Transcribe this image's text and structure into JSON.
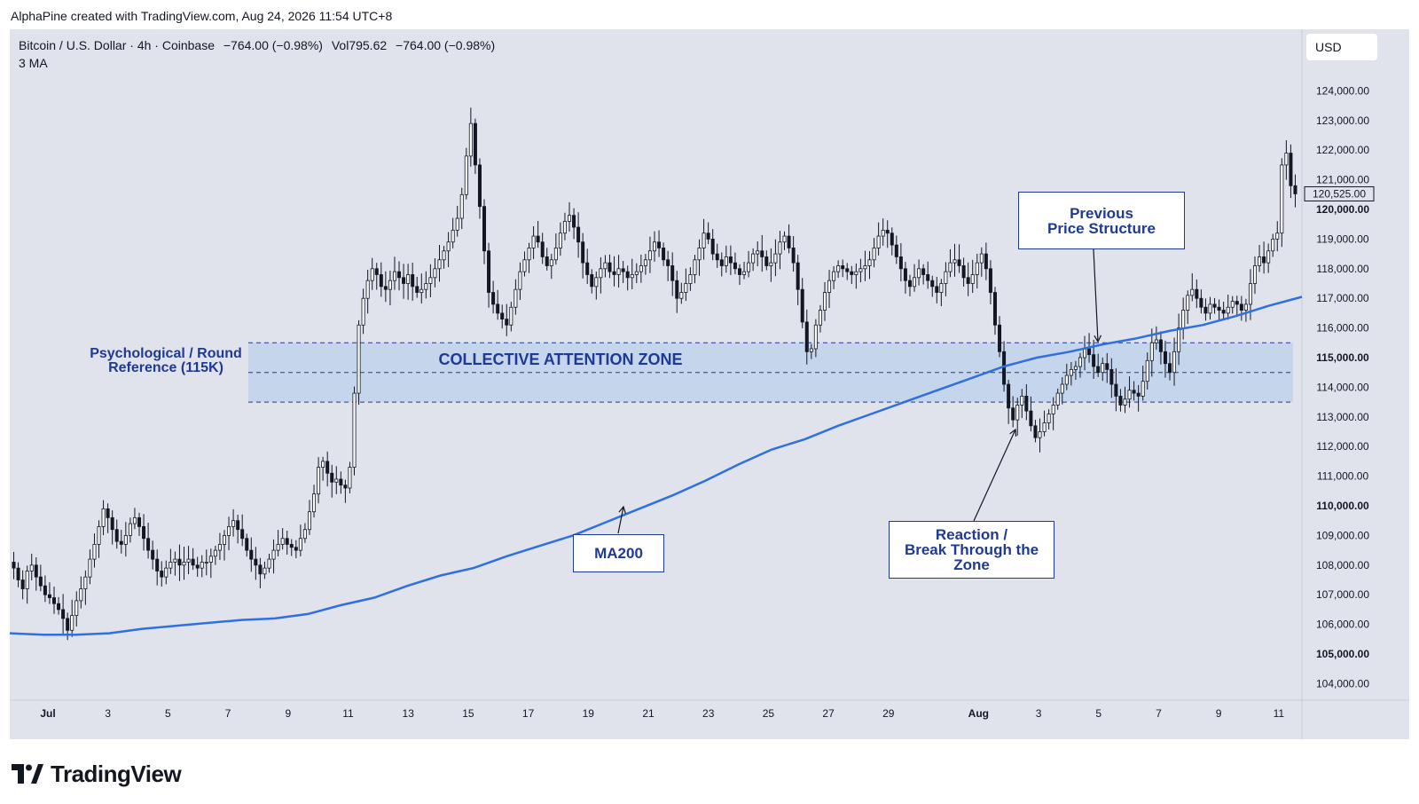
{
  "header": {
    "attribution": "AlphaPine created with TradingView.com, Aug 24, 2026 11:54 UTC+8"
  },
  "legend": {
    "symbol": "Bitcoin / U.S. Dollar · 4h · Coinbase",
    "change": "−764.00 (−0.98%)",
    "volume": "Vol795.62",
    "volume_change": "−764.00 (−0.98%)",
    "indicator": "3 MA"
  },
  "currency": "USD",
  "brand": {
    "name": "TradingView"
  },
  "annotations": {
    "zone_label": "COLLECTIVE ATTENTION ZONE",
    "psych_line1": "Psychological / Round",
    "psych_line2": "Reference (115K)",
    "ma_label": "MA200",
    "prev_line1": "Previous",
    "prev_line2": "Price Structure",
    "reaction_line1": "Reaction /",
    "reaction_line2": "Break Through the",
    "reaction_line3": "Zone"
  },
  "colors": {
    "background": "#e0e3eb",
    "candle": "#131722",
    "candle_up_fill": "#ffffff",
    "ma": "#2f6fe0",
    "zone": "#bcd2ec",
    "accent": "#1f3a93"
  },
  "chart_data": {
    "type": "candlestick",
    "symbol": "Bitcoin / U.S. Dollar",
    "interval": "4h",
    "exchange": "Coinbase",
    "last_price": 120525.0,
    "last_price_label": "120,525.00",
    "ylim": [
      103500,
      125700
    ],
    "y_ticks": [
      104000,
      105000,
      106000,
      107000,
      108000,
      109000,
      110000,
      111000,
      112000,
      113000,
      114000,
      115000,
      116000,
      117000,
      118000,
      119000,
      120000,
      121000,
      122000,
      123000,
      124000
    ],
    "y_tick_labels": [
      "104,000.00",
      "105,000.00",
      "106,000.00",
      "107,000.00",
      "108,000.00",
      "109,000.00",
      "110,000.00",
      "111,000.00",
      "112,000.00",
      "113,000.00",
      "114,000.00",
      "115,000.00",
      "116,000.00",
      "117,000.00",
      "118,000.00",
      "119,000.00",
      "120,000.00",
      "121,000.00",
      "122,000.00",
      "123,000.00",
      "124,000.00"
    ],
    "y_bold_ticks": [
      105000,
      110000,
      115000,
      120000
    ],
    "x_start": "Jul 1",
    "x_end": "Aug 12",
    "x_ticks": [
      {
        "day": 1,
        "label": "Jul"
      },
      {
        "day": 3,
        "label": "3"
      },
      {
        "day": 5,
        "label": "5"
      },
      {
        "day": 7,
        "label": "7"
      },
      {
        "day": 9,
        "label": "9"
      },
      {
        "day": 11,
        "label": "11"
      },
      {
        "day": 13,
        "label": "13"
      },
      {
        "day": 15,
        "label": "15"
      },
      {
        "day": 17,
        "label": "17"
      },
      {
        "day": 19,
        "label": "19"
      },
      {
        "day": 21,
        "label": "21"
      },
      {
        "day": 23,
        "label": "23"
      },
      {
        "day": 25,
        "label": "25"
      },
      {
        "day": 27,
        "label": "27"
      },
      {
        "day": 29,
        "label": "29"
      },
      {
        "day": 32,
        "label": "Aug"
      },
      {
        "day": 34,
        "label": "3"
      },
      {
        "day": 36,
        "label": "5"
      },
      {
        "day": 38,
        "label": "7"
      },
      {
        "day": 40,
        "label": "9"
      },
      {
        "day": 42,
        "label": "11"
      }
    ],
    "zone": {
      "top": 115500,
      "mid": 114500,
      "bottom": 113500,
      "label": "COLLECTIVE ATTENTION ZONE"
    },
    "closes": [
      107900,
      107500,
      107200,
      107800,
      108000,
      107600,
      107300,
      107000,
      106900,
      106700,
      106500,
      106200,
      105800,
      106300,
      106800,
      107200,
      107600,
      108200,
      108700,
      109300,
      109900,
      109600,
      109200,
      108800,
      108700,
      109000,
      109400,
      109600,
      109300,
      108900,
      108500,
      108200,
      107800,
      107600,
      107900,
      108100,
      108200,
      108000,
      108100,
      108200,
      108000,
      107900,
      108100,
      108100,
      108300,
      108500,
      108700,
      109000,
      109300,
      109500,
      109200,
      108900,
      108500,
      108200,
      108000,
      107700,
      107900,
      108200,
      108500,
      108700,
      108900,
      108700,
      108600,
      108500,
      108900,
      109200,
      109800,
      110400,
      111300,
      111500,
      111100,
      110800,
      110900,
      110700,
      110600,
      111300,
      113800,
      116100,
      117000,
      117600,
      118000,
      117800,
      117400,
      117300,
      117600,
      117900,
      117700,
      117500,
      117800,
      117400,
      117200,
      117300,
      117500,
      117700,
      118000,
      118300,
      118600,
      118900,
      119300,
      119700,
      120500,
      121800,
      122900,
      121500,
      120100,
      118600,
      117200,
      116800,
      116500,
      116300,
      116100,
      116700,
      117300,
      117900,
      118300,
      118700,
      119100,
      118900,
      118400,
      118100,
      118300,
      118700,
      119200,
      119600,
      119800,
      119400,
      118900,
      118200,
      117800,
      117400,
      117700,
      118000,
      118200,
      117900,
      117800,
      118000,
      117900,
      117700,
      117800,
      117900,
      118100,
      118300,
      118600,
      118900,
      118700,
      118300,
      118100,
      117600,
      117000,
      117200,
      117500,
      117800,
      118300,
      118700,
      119200,
      119000,
      118500,
      118300,
      118100,
      118400,
      118200,
      118000,
      117800,
      117900,
      118200,
      118500,
      118600,
      118400,
      118100,
      118200,
      118500,
      118900,
      119100,
      118700,
      118200,
      117300,
      116200,
      115200,
      115300,
      116100,
      116600,
      117200,
      117600,
      117900,
      118100,
      118000,
      117900,
      117800,
      117900,
      118000,
      118100,
      118300,
      118700,
      119100,
      119300,
      119200,
      118800,
      118400,
      118000,
      117600,
      117400,
      117700,
      118000,
      117800,
      117600,
      117400,
      117200,
      117500,
      117900,
      118200,
      118300,
      118100,
      117700,
      117500,
      117800,
      118200,
      118500,
      118000,
      117200,
      116100,
      115200,
      114100,
      113300,
      112900,
      113400,
      113700,
      113200,
      112700,
      112300,
      112500,
      112800,
      113100,
      113400,
      113800,
      114100,
      114400,
      114600,
      114700,
      115000,
      115300,
      115100,
      114700,
      114500,
      114800,
      114600,
      114100,
      113700,
      113400,
      113600,
      113900,
      113800,
      113700,
      114200,
      114900,
      115500,
      115600,
      115200,
      114800,
      114500,
      115200,
      116000,
      116600,
      117100,
      117300,
      117000,
      116700,
      116500,
      116800,
      116700,
      116600,
      116500,
      116700,
      116900,
      116800,
      116600,
      116800,
      117500,
      118100,
      118400,
      118200,
      118600,
      119000,
      119200,
      121500,
      121900,
      120800,
      120525
    ],
    "ma200": [
      [
        0,
        105700
      ],
      [
        1,
        105650
      ],
      [
        2,
        105650
      ],
      [
        3,
        105700
      ],
      [
        4,
        105850
      ],
      [
        5,
        105950
      ],
      [
        6,
        106050
      ],
      [
        7,
        106150
      ],
      [
        8,
        106200
      ],
      [
        9,
        106350
      ],
      [
        10,
        106650
      ],
      [
        11,
        106900
      ],
      [
        12,
        107300
      ],
      [
        13,
        107650
      ],
      [
        14,
        107900
      ],
      [
        15,
        108300
      ],
      [
        16,
        108650
      ],
      [
        17,
        109000
      ],
      [
        18,
        109450
      ],
      [
        19,
        109900
      ],
      [
        20,
        110350
      ],
      [
        21,
        110850
      ],
      [
        22,
        111400
      ],
      [
        23,
        111900
      ],
      [
        24,
        112250
      ],
      [
        25,
        112700
      ],
      [
        26,
        113100
      ],
      [
        27,
        113500
      ],
      [
        28,
        113900
      ],
      [
        29,
        114300
      ],
      [
        30,
        114700
      ],
      [
        31,
        115000
      ],
      [
        32,
        115200
      ],
      [
        33,
        115450
      ],
      [
        34,
        115650
      ],
      [
        35,
        115900
      ],
      [
        36,
        116100
      ],
      [
        37,
        116400
      ],
      [
        38,
        116750
      ],
      [
        39,
        117050
      ]
    ],
    "annotations": [
      {
        "text": "Psychological / Round Reference (115K)"
      },
      {
        "text": "COLLECTIVE ATTENTION ZONE"
      },
      {
        "text": "MA200"
      },
      {
        "text": "Previous Price Structure"
      },
      {
        "text": "Reaction / Break Through the Zone"
      }
    ]
  }
}
